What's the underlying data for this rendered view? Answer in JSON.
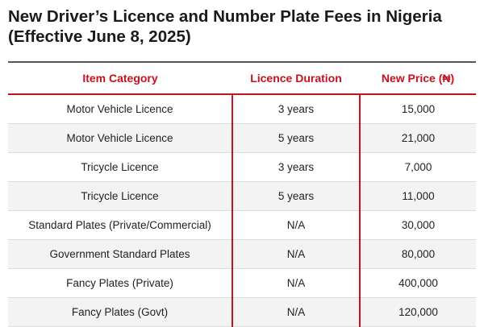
{
  "title": {
    "line1": "New Driver’s Licence and Number Plate Fees in Nigeria",
    "line2": "(Effective June 8, 2025)"
  },
  "table": {
    "headers": [
      "Item Category",
      "Licence Duration",
      "New Price (₦)"
    ],
    "rows": [
      [
        "Motor Vehicle Licence",
        "3 years",
        "15,000"
      ],
      [
        "Motor Vehicle Licence",
        "5 years",
        "21,000"
      ],
      [
        "Tricycle Licence",
        "3 years",
        "7,000"
      ],
      [
        "Tricycle Licence",
        "5 years",
        "11,000"
      ],
      [
        "Standard Plates (Private/Commercial)",
        "N/A",
        "30,000"
      ],
      [
        "Government Standard Plates",
        "N/A",
        "80,000"
      ],
      [
        "Fancy Plates (Private)",
        "N/A",
        "400,000"
      ],
      [
        "Fancy Plates (Govt)",
        "N/A",
        "120,000"
      ]
    ]
  },
  "colors": {
    "accent": "#c8101e",
    "text": "#222222",
    "stripe": "#f3f3f3"
  }
}
